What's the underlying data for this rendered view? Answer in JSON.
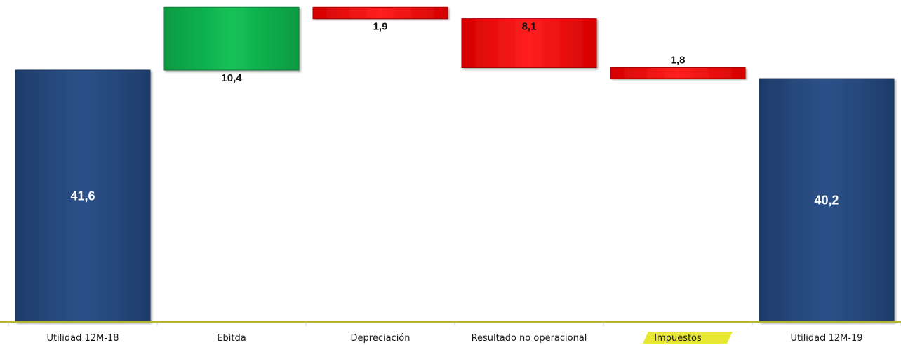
{
  "chart_data": {
    "type": "waterfall",
    "title": "",
    "xlabel": "",
    "ylabel": "",
    "categories": [
      "Utilidad 12M-18",
      "Ebitda",
      "Depreciación",
      "Resultado no operacional",
      "Impuestos",
      "Utilidad 12M-19"
    ],
    "bars": [
      {
        "label": "Utilidad 12M-18",
        "value_label": "41,6",
        "kind": "total",
        "start": 0,
        "end": 41.6,
        "color": "#2a4d82",
        "label_position": "inside"
      },
      {
        "label": "Ebitda",
        "value_label": "10,4",
        "kind": "increase",
        "start": 41.6,
        "end": 52.0,
        "color": "#10b550",
        "label_position": "below"
      },
      {
        "label": "Depreciación",
        "value_label": "1,9",
        "kind": "decrease",
        "start": 52.0,
        "end": 50.1,
        "color": "#ff1010",
        "label_position": "below"
      },
      {
        "label": "Resultado no operacional",
        "value_label": "8,1",
        "kind": "decrease",
        "start": 50.1,
        "end": 42.0,
        "color": "#ff1010",
        "label_position": "inside-top"
      },
      {
        "label": "Impuestos",
        "value_label": "1,8",
        "kind": "decrease",
        "start": 42.0,
        "end": 40.2,
        "color": "#ff1010",
        "label_position": "above"
      },
      {
        "label": "Utilidad 12M-19",
        "value_label": "40,2",
        "kind": "total",
        "start": 0,
        "end": 40.2,
        "color": "#2a4d82",
        "label_position": "inside"
      }
    ],
    "ylim": [
      0,
      52.0
    ],
    "grid": false,
    "legend": "none",
    "axis_color": "#b5b530",
    "highlight_color": "#e8e832"
  }
}
